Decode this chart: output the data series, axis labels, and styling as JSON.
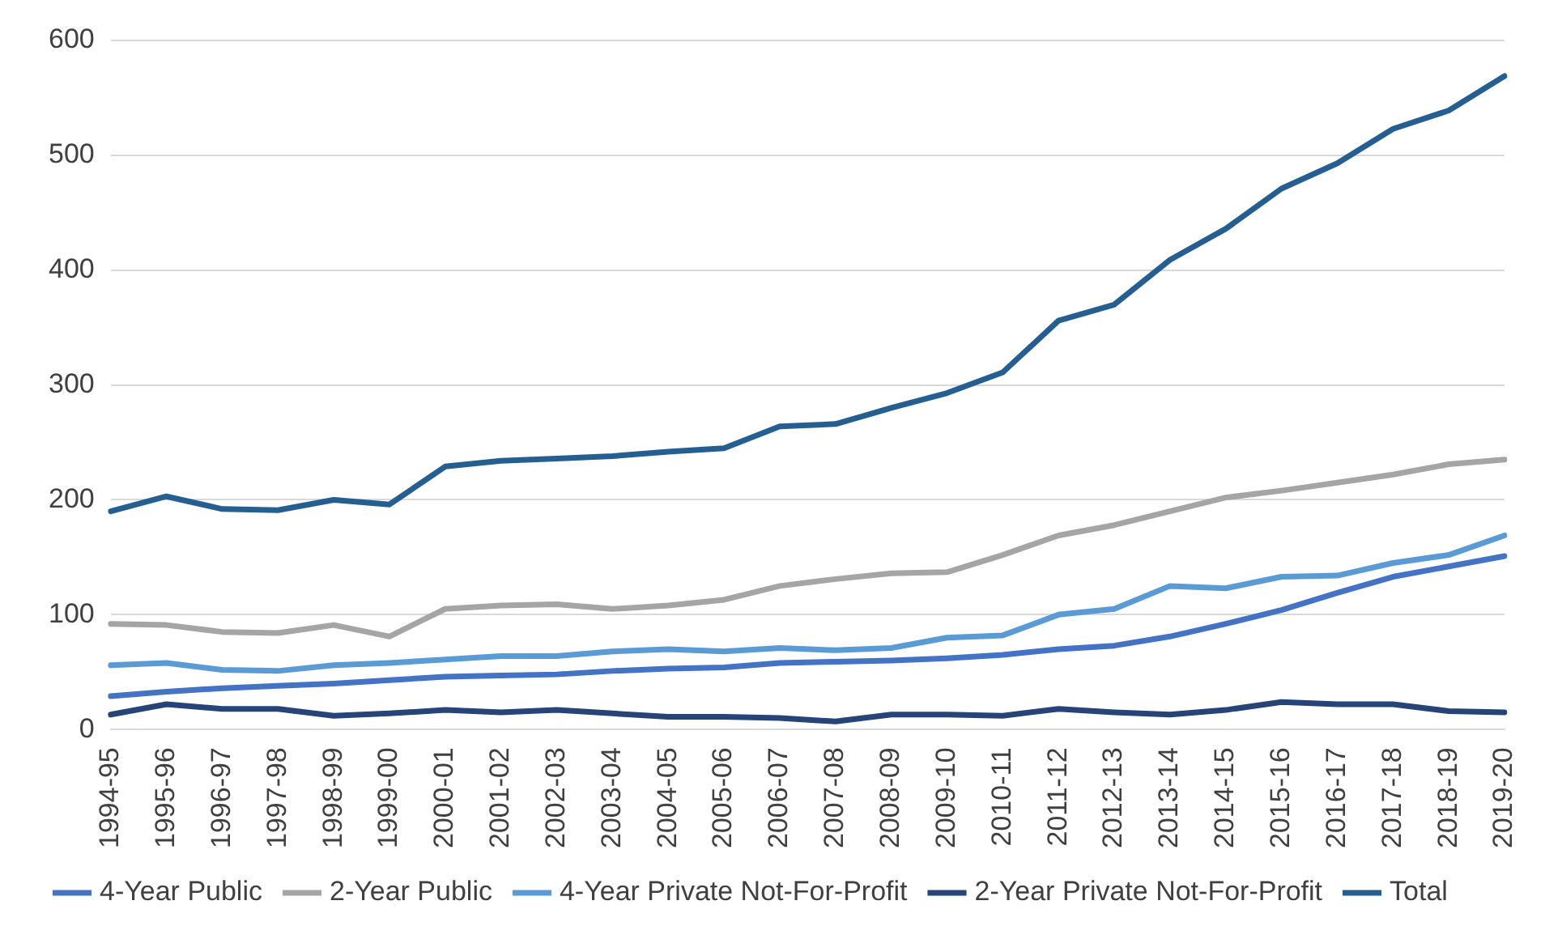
{
  "chart_data": {
    "type": "line",
    "categories": [
      "1994-95",
      "1995-96",
      "1996-97",
      "1997-98",
      "1998-99",
      "1999-00",
      "2000-01",
      "2001-02",
      "2002-03",
      "2003-04",
      "2004-05",
      "2005-06",
      "2006-07",
      "2007-08",
      "2008-09",
      "2009-10",
      "2010-11",
      "2011-12",
      "2012-13",
      "2013-14",
      "2014-15",
      "2015-16",
      "2016-17",
      "2017-18",
      "2018-19",
      "2019-20"
    ],
    "series": [
      {
        "name": "4-Year Public",
        "color": "#4472c4",
        "values": [
          29,
          33,
          36,
          38,
          40,
          43,
          46,
          47,
          48,
          51,
          53,
          54,
          58,
          59,
          60,
          62,
          65,
          70,
          73,
          81,
          92,
          104,
          119,
          133,
          142,
          151
        ]
      },
      {
        "name": "2-Year Public",
        "color": "#a5a5a5",
        "values": [
          92,
          91,
          85,
          84,
          91,
          81,
          105,
          108,
          109,
          105,
          108,
          113,
          125,
          131,
          136,
          137,
          152,
          169,
          178,
          190,
          202,
          208,
          215,
          222,
          231,
          235
        ]
      },
      {
        "name": "4-Year Private Not-For-Profit",
        "color": "#5b9bd5",
        "values": [
          56,
          58,
          52,
          51,
          56,
          58,
          61,
          64,
          64,
          68,
          70,
          68,
          71,
          69,
          71,
          80,
          82,
          100,
          105,
          125,
          123,
          133,
          134,
          145,
          152,
          169
        ]
      },
      {
        "name": "2-Year Private Not-For-Profit",
        "color": "#264478",
        "values": [
          13,
          22,
          18,
          18,
          12,
          14,
          17,
          15,
          17,
          14,
          11,
          11,
          10,
          7,
          13,
          13,
          12,
          18,
          15,
          13,
          17,
          24,
          22,
          22,
          16,
          15
        ]
      },
      {
        "name": "Total",
        "color": "#255e91",
        "values": [
          190,
          203,
          192,
          191,
          200,
          196,
          229,
          234,
          236,
          238,
          242,
          245,
          264,
          266,
          280,
          293,
          311,
          356,
          370,
          409,
          436,
          471,
          493,
          523,
          539,
          569
        ]
      }
    ],
    "ylim": [
      0,
      600
    ],
    "yticks": [
      0,
      100,
      200,
      300,
      400,
      500,
      600
    ],
    "grid": "y",
    "legend": "bottom",
    "marker": "none",
    "line_style": "solid"
  }
}
